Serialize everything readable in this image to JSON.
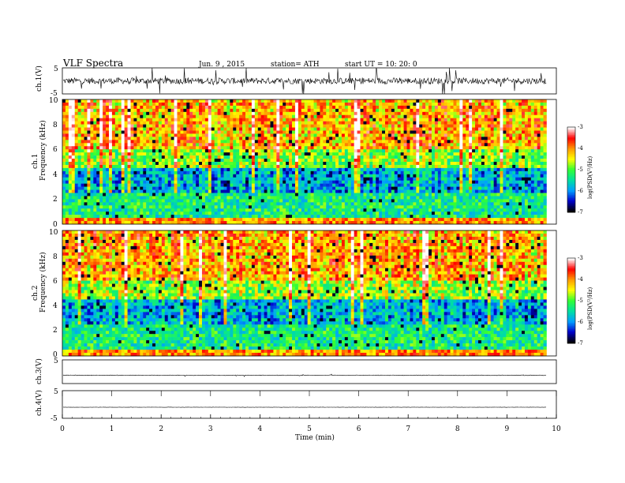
{
  "header": {
    "title": "VLF  Spectra",
    "date": "Jun. 9  , 2015",
    "station": "station= ATH",
    "start": "start  UT =    10: 20: 0"
  },
  "colors": {
    "trace": "#000000",
    "colormap": [
      "#000000",
      "#0000cc",
      "#00a0ff",
      "#00e0a0",
      "#33ff33",
      "#ffff00",
      "#ff9900",
      "#ff0000",
      "#ffffff"
    ]
  },
  "chart_data": [
    {
      "type": "line",
      "id": "ch1",
      "ylabel": "ch.1(V)",
      "ylim": [
        -5,
        5
      ],
      "yticks": [
        "5",
        "-5"
      ],
      "description": "noisy waveform oscillating around 0 V with spikes across the full 0–9.8 min span"
    },
    {
      "type": "heatmap",
      "id": "ch1-spec",
      "ylabel_top": "ch.1",
      "ylabel": "Frequency  (kHz)",
      "ylim": [
        0,
        10
      ],
      "yticks": [
        "0",
        "2",
        "4",
        "6",
        "8",
        "10"
      ],
      "colorbar": {
        "label": "log(PSD(V²/Hz)",
        "range": [
          -7,
          -3
        ],
        "ticks": [
          "-3",
          "-4",
          "-5",
          "-6",
          "-7"
        ]
      }
    },
    {
      "type": "heatmap",
      "id": "ch2-spec",
      "ylabel_top": "ch.2",
      "ylabel": "Frequency  (kHz)",
      "ylim": [
        0,
        10
      ],
      "yticks": [
        "0",
        "2",
        "4",
        "6",
        "8",
        "10"
      ],
      "colorbar": {
        "label": "log(PSD(V²/Hz)",
        "range": [
          -7,
          -3
        ],
        "ticks": [
          "-3",
          "-4",
          "-5",
          "-6",
          "-7"
        ]
      }
    },
    {
      "type": "line",
      "id": "ch3",
      "ylabel": "ch.3(V)",
      "ylim": [
        -5,
        5
      ],
      "yticks": [
        "5"
      ],
      "description": "nearly flat trace near -1.5 V"
    },
    {
      "type": "line",
      "id": "ch4",
      "ylabel": "ch.4(V)",
      "ylim": [
        -5,
        5
      ],
      "yticks": [
        "5",
        "-5"
      ],
      "description": "flat trace near -1 V with periodic vertical tick marks"
    }
  ],
  "xaxis": {
    "label": "Time  (min)",
    "xlim": [
      0,
      10
    ],
    "ticks": [
      "0",
      "1",
      "2",
      "3",
      "4",
      "5",
      "6",
      "7",
      "8",
      "9",
      "10"
    ],
    "data_end": 9.8
  }
}
